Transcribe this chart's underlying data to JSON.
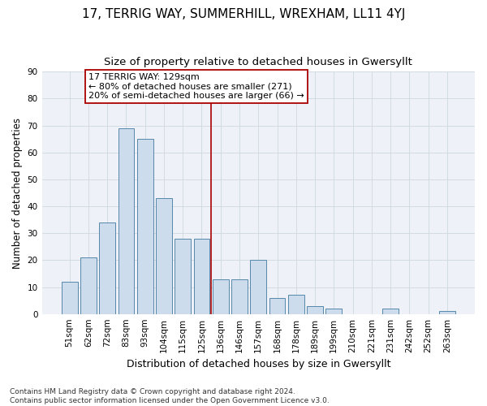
{
  "title1": "17, TERRIG WAY, SUMMERHILL, WREXHAM, LL11 4YJ",
  "title2": "Size of property relative to detached houses in Gwersyllt",
  "xlabel": "Distribution of detached houses by size in Gwersyllt",
  "ylabel": "Number of detached properties",
  "bar_labels": [
    "51sqm",
    "62sqm",
    "72sqm",
    "83sqm",
    "93sqm",
    "104sqm",
    "115sqm",
    "125sqm",
    "136sqm",
    "146sqm",
    "157sqm",
    "168sqm",
    "178sqm",
    "189sqm",
    "199sqm",
    "210sqm",
    "221sqm",
    "231sqm",
    "242sqm",
    "252sqm",
    "263sqm"
  ],
  "bar_values": [
    12,
    21,
    34,
    69,
    65,
    43,
    28,
    28,
    13,
    13,
    20,
    6,
    7,
    3,
    2,
    0,
    0,
    2,
    0,
    0,
    1
  ],
  "bar_color": "#ccdcec",
  "bar_edge_color": "#5588aa",
  "grid_color": "#d0d8e0",
  "background_color": "#eef2f8",
  "vline_x": 7.5,
  "vline_color": "#aa0000",
  "annotation_text": "17 TERRIG WAY: 129sqm\n← 80% of detached houses are smaller (271)\n20% of semi-detached houses are larger (66) →",
  "annotation_box_color": "#ffffff",
  "annotation_box_edge": "#aa0000",
  "ylim": [
    0,
    90
  ],
  "yticks": [
    0,
    10,
    20,
    30,
    40,
    50,
    60,
    70,
    80,
    90
  ],
  "footnote": "Contains HM Land Registry data © Crown copyright and database right 2024.\nContains public sector information licensed under the Open Government Licence v3.0.",
  "title1_fontsize": 11,
  "title2_fontsize": 9.5,
  "xlabel_fontsize": 9,
  "ylabel_fontsize": 8.5,
  "tick_fontsize": 7.5,
  "annotation_fontsize": 8,
  "footnote_fontsize": 6.5
}
